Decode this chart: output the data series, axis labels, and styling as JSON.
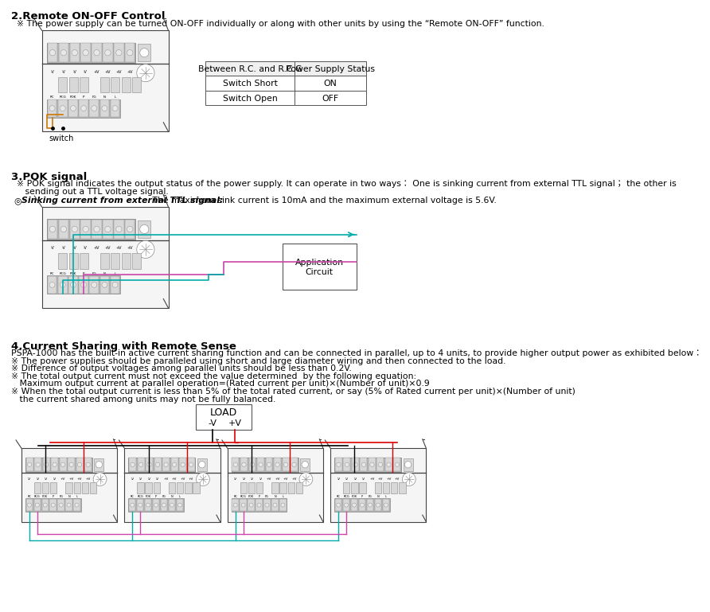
{
  "bg_color": "#ffffff",
  "section2_title": "2.Remote ON-OFF Control",
  "section2_note": "※ The power supply can be turned ON-OFF individually or along with other units by using the “Remote ON-OFF” function.",
  "table_headers": [
    "Between R.C. and R.C.G",
    "Power Supply Status"
  ],
  "table_rows": [
    [
      "Switch Short",
      "ON"
    ],
    [
      "Switch Open",
      "OFF"
    ]
  ],
  "section3_title": "3.POK signal",
  "section3_note1a": "※ POK signal indicates the output status of the power supply. It can operate in two ways： One is sinking current from external TTL signal； the other is",
  "section3_note1b": "   sending out a TTL voltage signal.",
  "section3_circle": "◎",
  "section3_bold": "Sinking current from external TTL signal:",
  "section3_note2rest": " The maximum sink current is 10mA and the maximum external voltage is 5.6V.",
  "section4_title": "4.Current Sharing with Remote Sense",
  "section4_notes": [
    "PSPA-1000 has the built-in active current sharing function and can be connected in parallel, up to 4 units, to provide higher output power as exhibited below：",
    "※ The power supplies should be paralleled using short and large diameter wiring and then connected to the load.",
    "※ Difference of output voltages among parallel units should be less than 0.2V.",
    "※ The total output current must not exceed the value determined  by the following equation:",
    "   Maximum output current at parallel operation=(Rated current per unit)×(Number of unit)×0.9",
    "※ When the total output current is less than 5% of the total rated current, or say (5% of Rated current per unit)×(Number of unit)",
    "   the current shared among units may not be fully balanced."
  ],
  "psu_gray_light": "#d8d8d8",
  "psu_gray_med": "#bbbbbb",
  "psu_gray_dark": "#888888",
  "psu_outline": "#444444",
  "wire_orange": "#cc7700",
  "wire_teal": "#00aaaa",
  "wire_pink": "#cc44aa",
  "wire_red": "#dd0000",
  "wire_black": "#000000"
}
